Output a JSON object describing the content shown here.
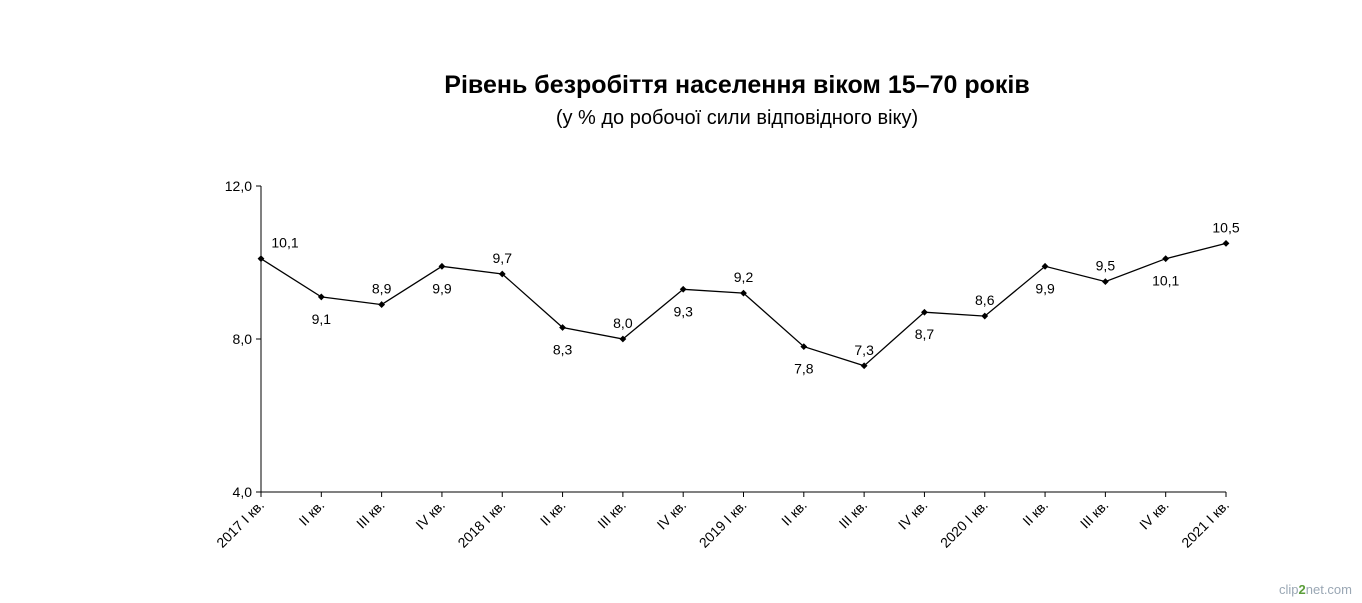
{
  "chart_data": {
    "type": "line",
    "title": "Рівень безробіття населення віком 15–70 років",
    "subtitle": "(у % до робочої сили відповідного віку)",
    "xlabel": "",
    "ylabel": "",
    "categories": [
      "2017  I кв.",
      "II кв.",
      "III кв.",
      "IV кв.",
      "2018  I кв.",
      "II кв.",
      "III кв.",
      "IV кв.",
      "2019 I кв.",
      "II кв.",
      "III кв.",
      "IV кв.",
      "2020 I кв.",
      "II кв.",
      "III кв.",
      "IV кв.",
      "2021 I кв."
    ],
    "values": [
      10.1,
      9.1,
      8.9,
      9.9,
      9.7,
      8.3,
      8.0,
      9.3,
      9.2,
      7.8,
      7.3,
      8.7,
      8.6,
      9.9,
      9.5,
      10.1,
      10.5
    ],
    "data_labels": [
      "10,1",
      "9,1",
      "8,9",
      "9,9",
      "9,7",
      "8,3",
      "8,0",
      "9,3",
      "9,2",
      "7,8",
      "7,3",
      "8,7",
      "8,6",
      "9,9",
      "9,5",
      "10,1",
      "10,5"
    ],
    "label_placement": [
      "above",
      "below",
      "above",
      "below",
      "above",
      "below",
      "above",
      "below",
      "above",
      "below",
      "above",
      "below",
      "above",
      "below",
      "above",
      "below",
      "above"
    ],
    "y_ticks": [
      4.0,
      8.0,
      12.0
    ],
    "y_tick_labels": [
      "4,0",
      "8,0",
      "12,0"
    ],
    "ylim": [
      4.0,
      12.0
    ],
    "grid": false,
    "legend": "none",
    "colors": {
      "line": "#000000",
      "marker": "#000000",
      "axis": "#000000"
    }
  },
  "watermark": {
    "prefix": "clip",
    "accent": "2",
    "suffix": "net.com"
  }
}
